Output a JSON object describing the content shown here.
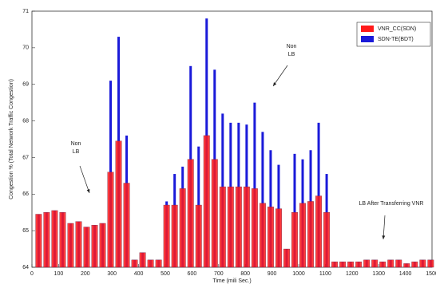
{
  "chart_data": {
    "type": "bar",
    "xlabel": "Time (mili Sec.)",
    "ylabel": "Congestion % (Total Network Traffic Congestion)",
    "x": [
      25,
      55,
      85,
      115,
      145,
      175,
      205,
      235,
      265,
      295,
      325,
      355,
      385,
      415,
      445,
      475,
      505,
      535,
      565,
      595,
      625,
      655,
      685,
      715,
      745,
      775,
      805,
      835,
      865,
      895,
      925,
      955,
      985,
      1015,
      1045,
      1075,
      1105,
      1135,
      1165,
      1195,
      1225,
      1255,
      1285,
      1315,
      1345,
      1375,
      1405,
      1435,
      1465,
      1495
    ],
    "series": [
      {
        "name": "VNR_CC(SDN)",
        "color": "#ff1a1a",
        "values": [
          65.45,
          65.5,
          65.55,
          65.5,
          65.2,
          65.25,
          65.1,
          65.15,
          65.2,
          66.6,
          67.45,
          66.3,
          64.2,
          64.4,
          64.2,
          64.2,
          65.7,
          65.7,
          66.15,
          66.95,
          65.7,
          67.6,
          66.95,
          66.2,
          66.2,
          66.2,
          66.2,
          66.15,
          65.75,
          65.65,
          65.6,
          64.5,
          65.5,
          65.75,
          65.8,
          65.95,
          65.5,
          64.15,
          64.15,
          64.15,
          64.15,
          64.2,
          64.2,
          64.15,
          64.2,
          64.2,
          64.1,
          64.15,
          64.2,
          64.2
        ]
      },
      {
        "name": "SDN-TE(BDT)",
        "color": "#1a1ad9",
        "values": [
          65.45,
          65.5,
          65.55,
          65.5,
          65.2,
          65.25,
          65.1,
          65.15,
          65.2,
          69.1,
          70.3,
          67.6,
          64.2,
          64.4,
          64.2,
          64.2,
          65.8,
          66.55,
          66.75,
          69.5,
          67.3,
          70.8,
          69.4,
          68.2,
          67.95,
          67.95,
          67.9,
          68.5,
          67.7,
          67.2,
          66.8,
          64.5,
          67.1,
          66.95,
          67.2,
          67.95,
          66.55,
          64.15,
          64.15,
          64.15,
          64.15,
          64.2,
          64.2,
          64.15,
          64.2,
          64.2,
          64.1,
          64.15,
          64.2,
          64.2
        ]
      }
    ],
    "xlim": [
      0,
      1500
    ],
    "xticks": [
      0,
      100,
      200,
      300,
      400,
      500,
      600,
      700,
      800,
      900,
      1000,
      1100,
      1200,
      1300,
      1400,
      1500
    ],
    "ylim": [
      64,
      71
    ],
    "yticks": [
      64,
      65,
      66,
      67,
      68,
      69,
      70,
      71
    ],
    "legend": "upper right",
    "annotations": [
      [
        "Non",
        "LB"
      ],
      [
        "Non",
        "LB"
      ],
      [
        "LB After Transferring VNR"
      ]
    ]
  }
}
